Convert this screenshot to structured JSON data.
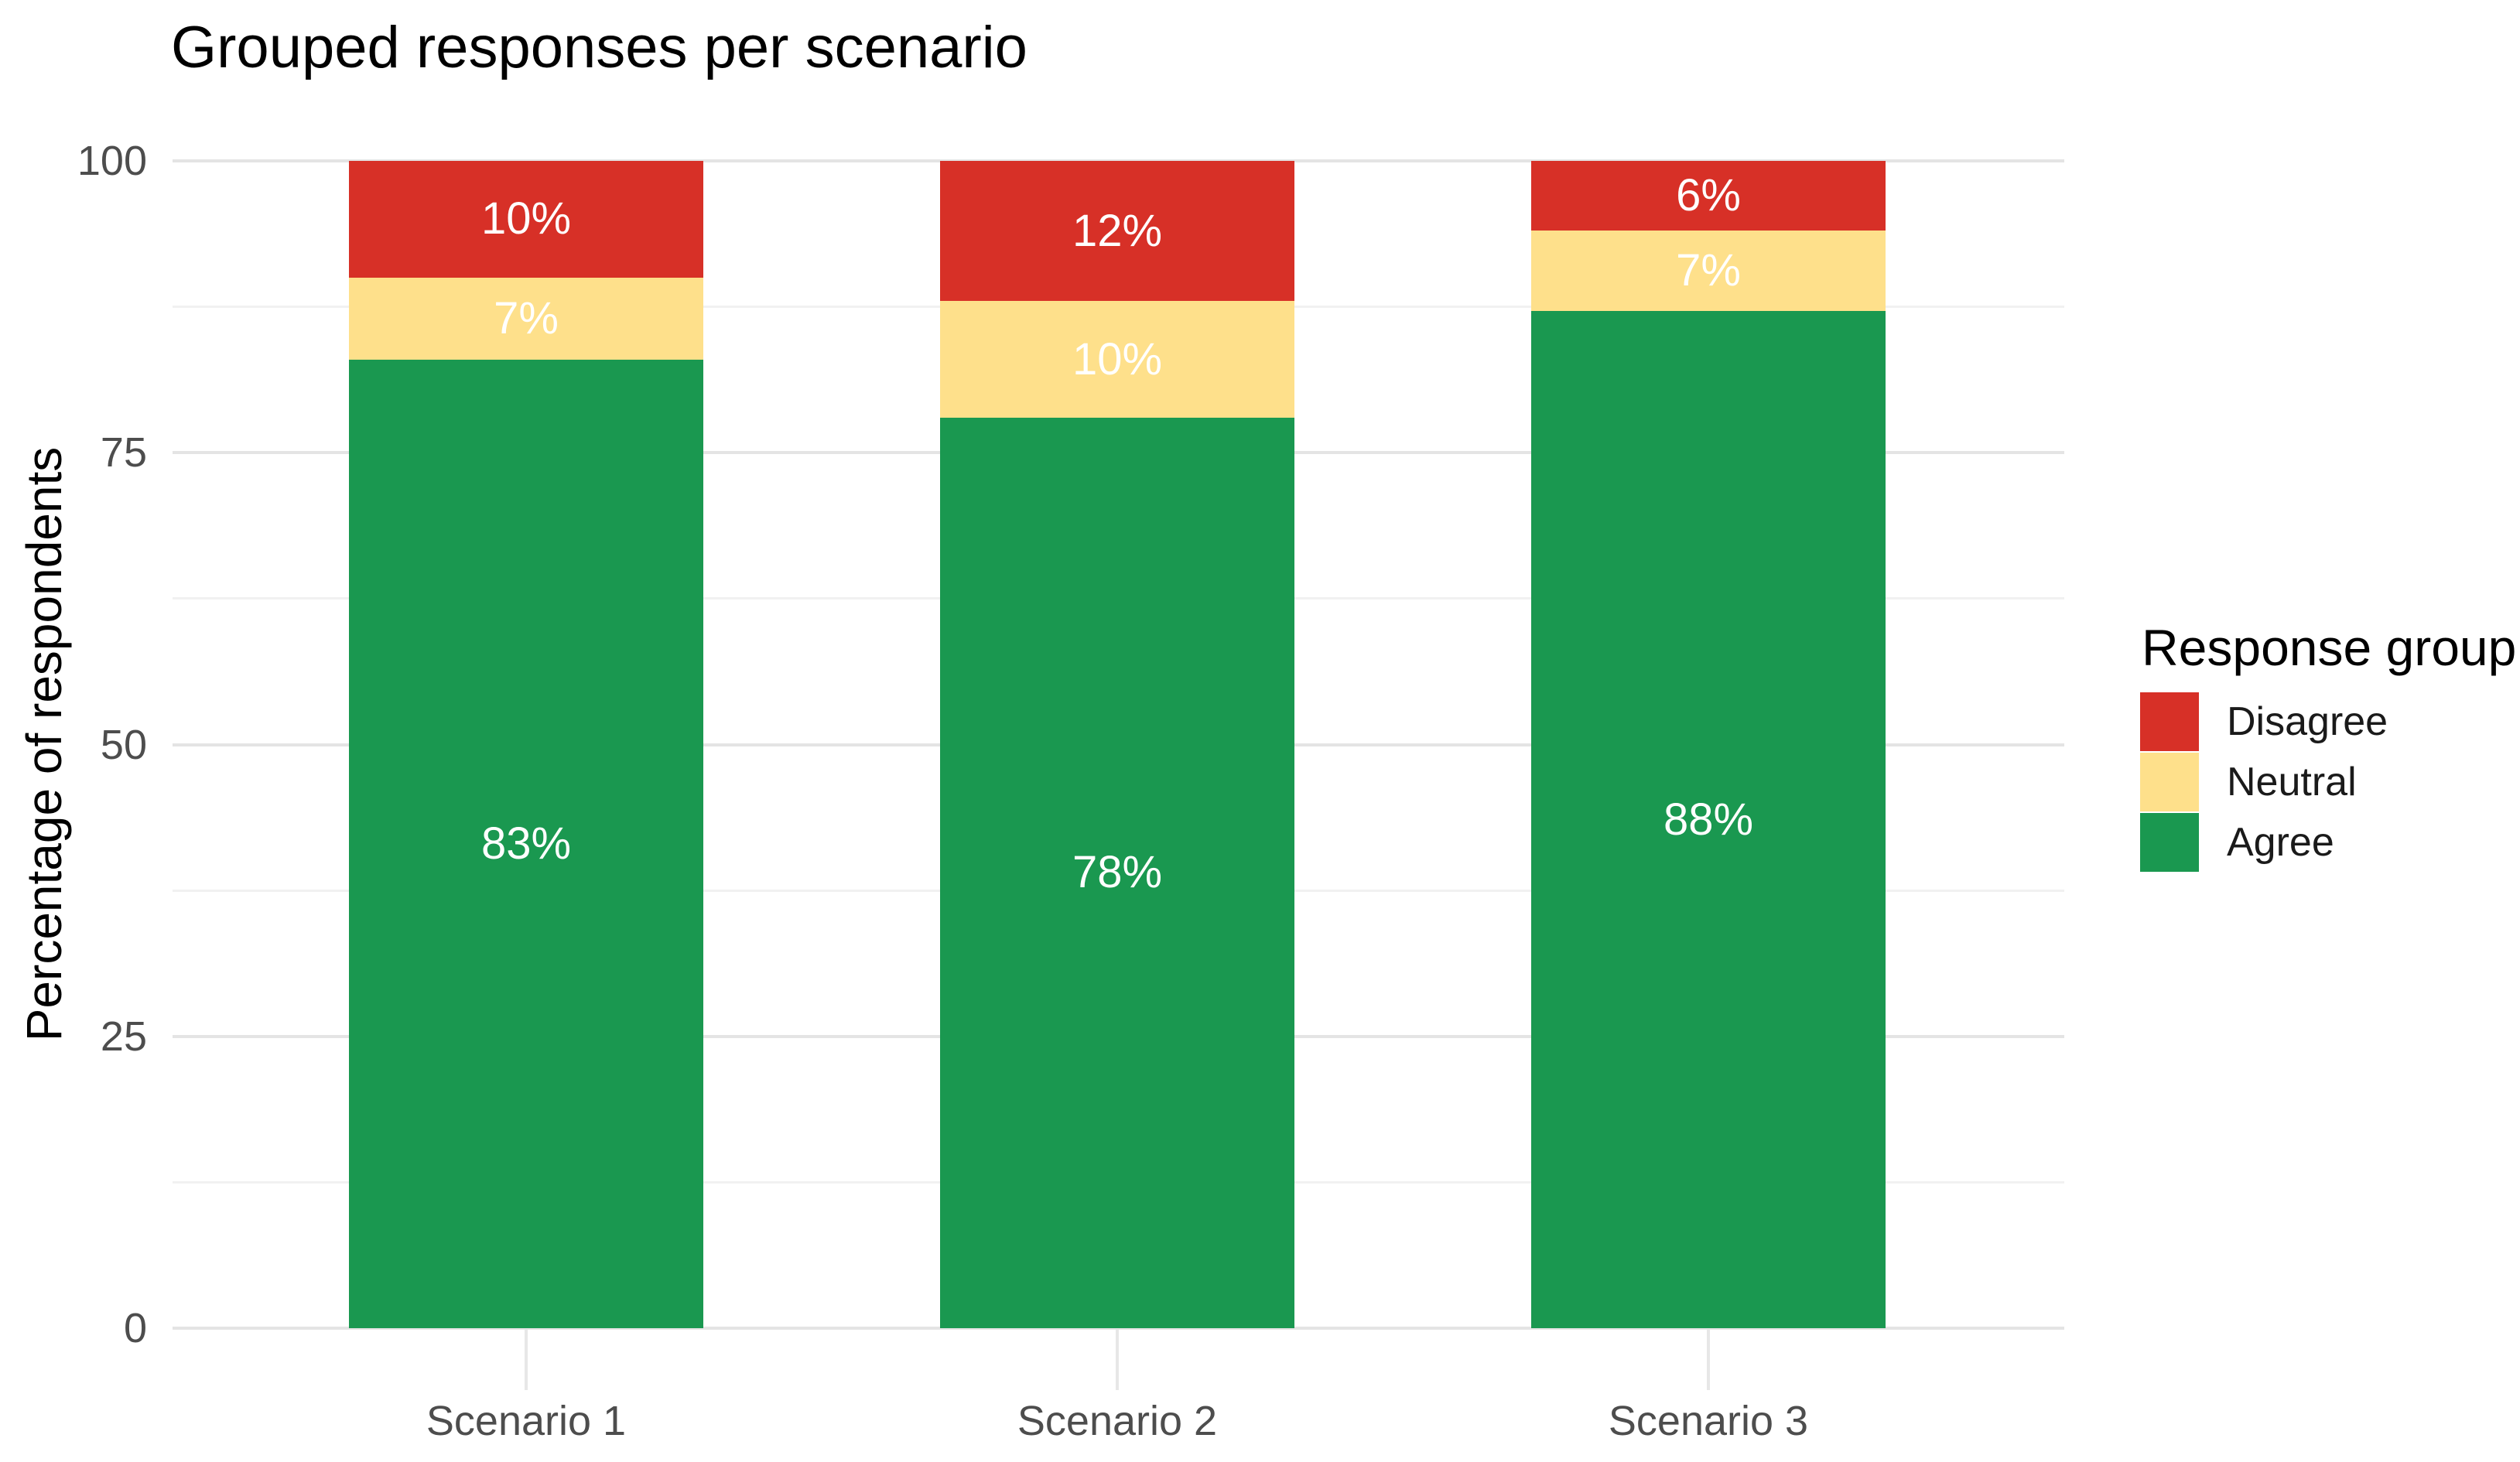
{
  "chart_data": {
    "type": "bar",
    "variant": "stacked-percentage",
    "title": "Grouped responses per scenario",
    "xlabel": "",
    "ylabel": "Percentage of respondents",
    "categories": [
      "Scenario 1",
      "Scenario 2",
      "Scenario 3"
    ],
    "series": [
      {
        "name": "Agree",
        "color": "#1A9850",
        "values": [
          83,
          78,
          88
        ],
        "labels": [
          "83%",
          "78%",
          "88%"
        ]
      },
      {
        "name": "Neutral",
        "color": "#FEE08B",
        "values": [
          7,
          10,
          7
        ],
        "labels": [
          "7%",
          "10%",
          "7%"
        ]
      },
      {
        "name": "Disagree",
        "color": "#D73027",
        "values": [
          10,
          12,
          6
        ],
        "labels": [
          "10%",
          "12%",
          "6%"
        ]
      }
    ],
    "y_tick_labels": [
      "0",
      "25",
      "50",
      "75",
      "100"
    ],
    "y_tick_values": [
      0,
      25,
      50,
      75,
      100
    ],
    "y_minor_tick_values": [
      12.5,
      37.5,
      62.5,
      87.5
    ],
    "ylim": [
      0,
      100
    ],
    "grid": {
      "major": true,
      "minor": true
    },
    "bar_label_color": "#FFFFFF",
    "legend": {
      "title": "Response group",
      "position": "right",
      "entries": [
        {
          "label": "Disagree",
          "color": "#D73027"
        },
        {
          "label": "Neutral",
          "color": "#FEE08B"
        },
        {
          "label": "Agree",
          "color": "#1A9850"
        }
      ]
    }
  },
  "colors": {
    "background": "#FFFFFF",
    "grid_major": "#E4E4E4",
    "grid_minor": "#F1F1F1",
    "axis_text": "#4D4D4D",
    "title_text": "#000000",
    "tick_mark": "#E7E7E7"
  }
}
